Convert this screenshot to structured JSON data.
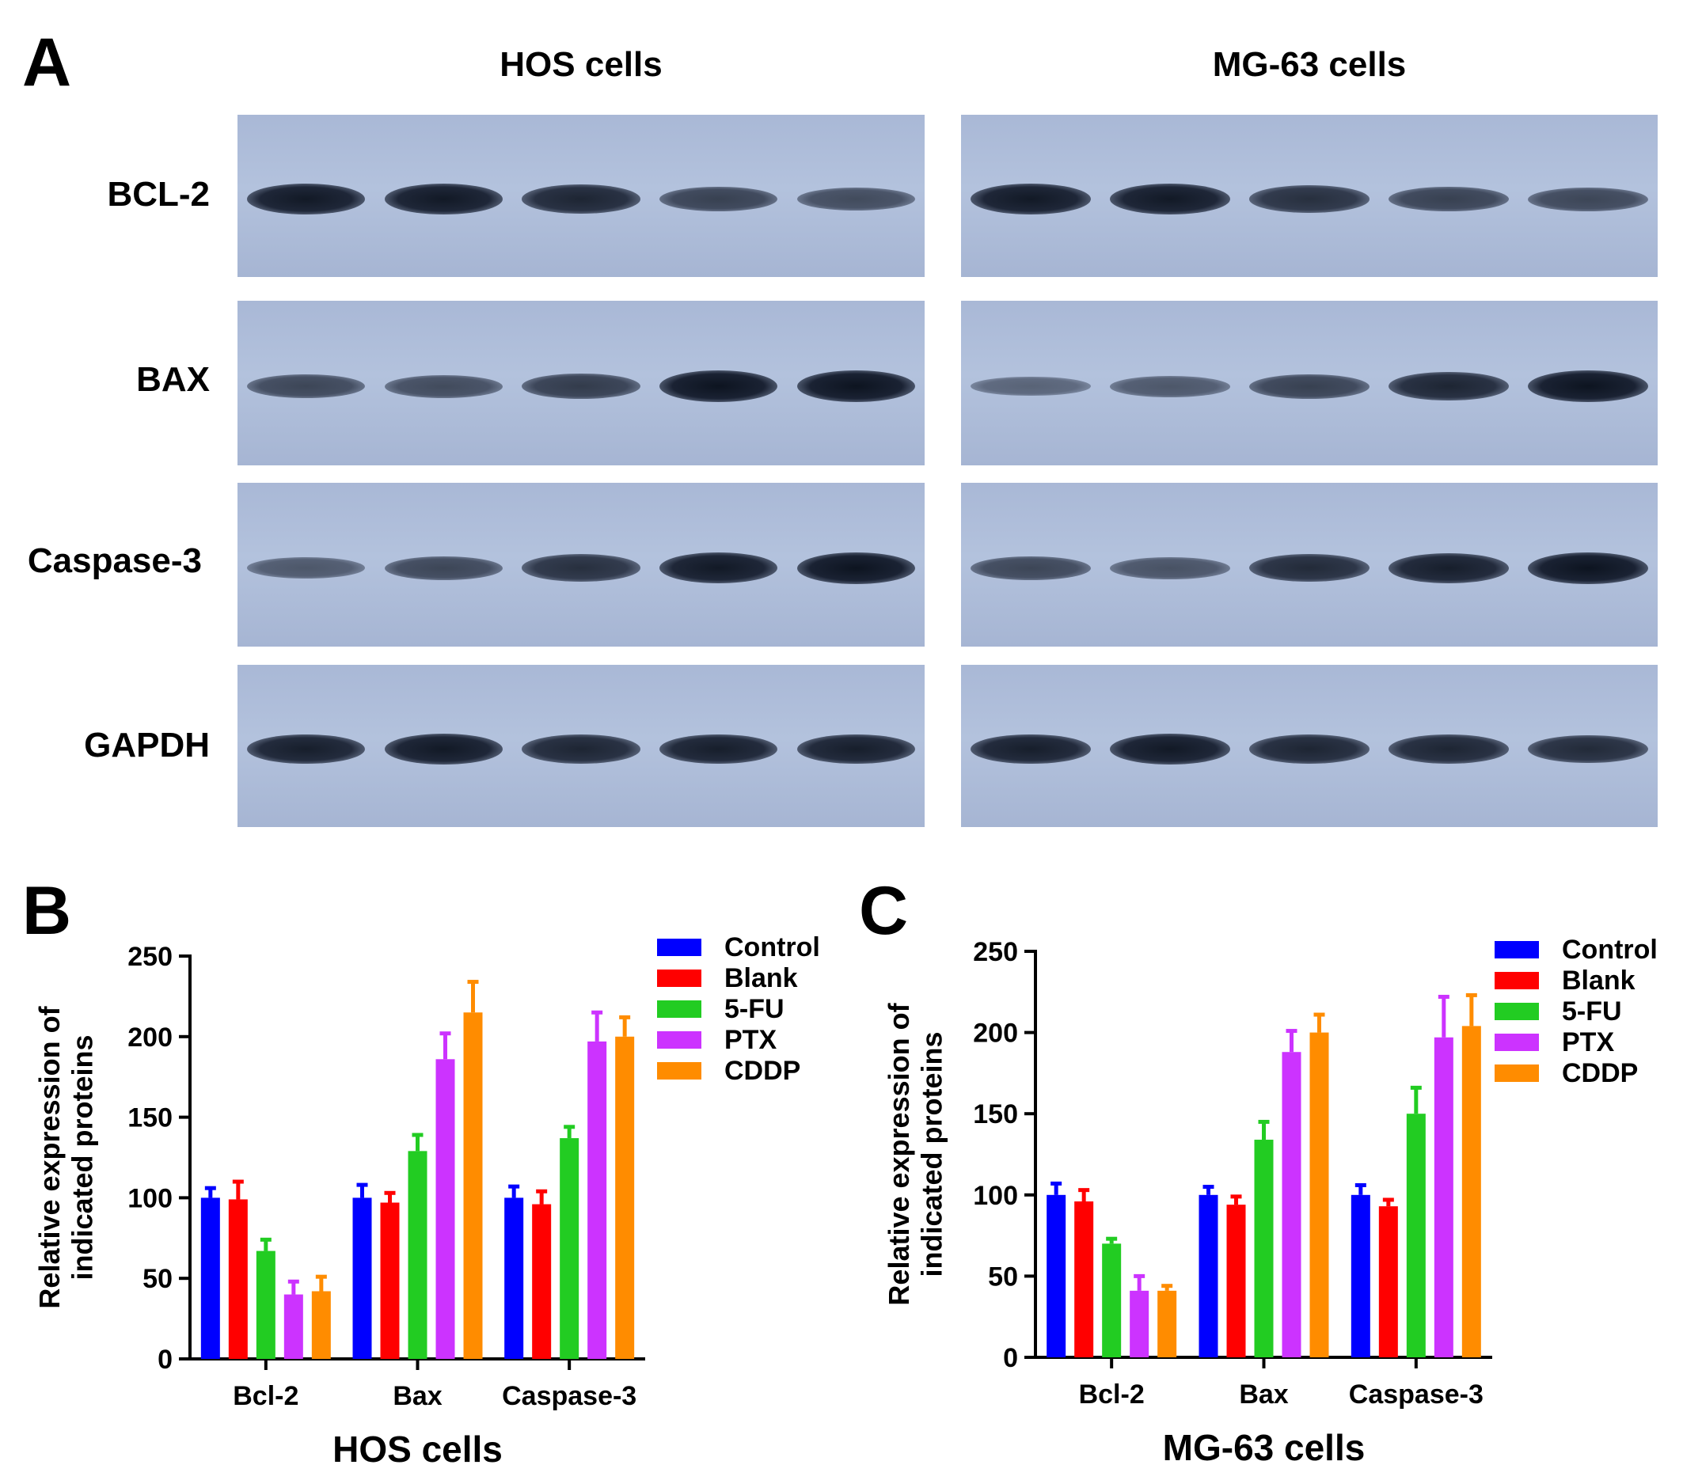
{
  "panel_labels": {
    "a": "A",
    "b": "B",
    "c": "C"
  },
  "blot": {
    "col_titles": [
      "HOS cells",
      "MG-63 cells"
    ],
    "row_labels": [
      "BCL-2",
      "BAX",
      "Caspase-3",
      "GAPDH"
    ],
    "band_intensity": {
      "HOS cells": {
        "BCL-2": [
          0.95,
          0.95,
          0.85,
          0.6,
          0.5
        ],
        "BAX": [
          0.55,
          0.5,
          0.65,
          1.0,
          1.0
        ],
        "Caspase-3": [
          0.4,
          0.55,
          0.75,
          0.95,
          1.0
        ],
        "GAPDH": [
          0.9,
          0.95,
          0.85,
          0.9,
          0.9
        ]
      },
      "MG-63 cells": {
        "BCL-2": [
          0.95,
          0.95,
          0.75,
          0.6,
          0.55
        ],
        "BAX": [
          0.3,
          0.4,
          0.6,
          0.85,
          1.0
        ],
        "Caspase-3": [
          0.55,
          0.45,
          0.8,
          0.9,
          1.0
        ],
        "GAPDH": [
          0.9,
          0.95,
          0.85,
          0.85,
          0.8
        ]
      }
    }
  },
  "colors": {
    "Control": "#0000ff",
    "Blank": "#ff0000",
    "5-FU": "#22cc22",
    "PTX": "#cc33ff",
    "CDDP": "#ff8c00"
  },
  "chart_data": [
    {
      "type": "bar",
      "xlabel": "HOS cells",
      "ylabel": "Relative expression of indicated proteins",
      "categories": [
        "Bcl-2",
        "Bax",
        "Caspase-3"
      ],
      "ylim": [
        0,
        250
      ],
      "yticks": [
        "0",
        "50",
        "100",
        "150",
        "200",
        "250"
      ],
      "legend_position": "top-right",
      "series": [
        {
          "name": "Control",
          "values": [
            100,
            100,
            100
          ],
          "errors": [
            6,
            8,
            7
          ]
        },
        {
          "name": "Blank",
          "values": [
            99,
            97,
            96
          ],
          "errors": [
            11,
            6,
            8
          ]
        },
        {
          "name": "5-FU",
          "values": [
            67,
            129,
            137
          ],
          "errors": [
            7,
            10,
            7
          ]
        },
        {
          "name": "PTX",
          "values": [
            40,
            186,
            197
          ],
          "errors": [
            8,
            16,
            18
          ]
        },
        {
          "name": "CDDP",
          "values": [
            42,
            215,
            200
          ],
          "errors": [
            9,
            19,
            12
          ]
        }
      ]
    },
    {
      "type": "bar",
      "xlabel": "MG-63 cells",
      "ylabel": "Relative expression of indicated proteins",
      "categories": [
        "Bcl-2",
        "Bax",
        "Caspase-3"
      ],
      "ylim": [
        0,
        250
      ],
      "yticks": [
        "0",
        "50",
        "100",
        "150",
        "200",
        "250"
      ],
      "legend_position": "top-right",
      "series": [
        {
          "name": "Control",
          "values": [
            100,
            100,
            100
          ],
          "errors": [
            7,
            5,
            6
          ]
        },
        {
          "name": "Blank",
          "values": [
            96,
            94,
            93
          ],
          "errors": [
            7,
            5,
            4
          ]
        },
        {
          "name": "5-FU",
          "values": [
            70,
            134,
            150
          ],
          "errors": [
            3,
            11,
            16
          ]
        },
        {
          "name": "PTX",
          "values": [
            41,
            188,
            197
          ],
          "errors": [
            9,
            13,
            25
          ]
        },
        {
          "name": "CDDP",
          "values": [
            41,
            200,
            204
          ],
          "errors": [
            3,
            11,
            19
          ]
        }
      ]
    }
  ]
}
